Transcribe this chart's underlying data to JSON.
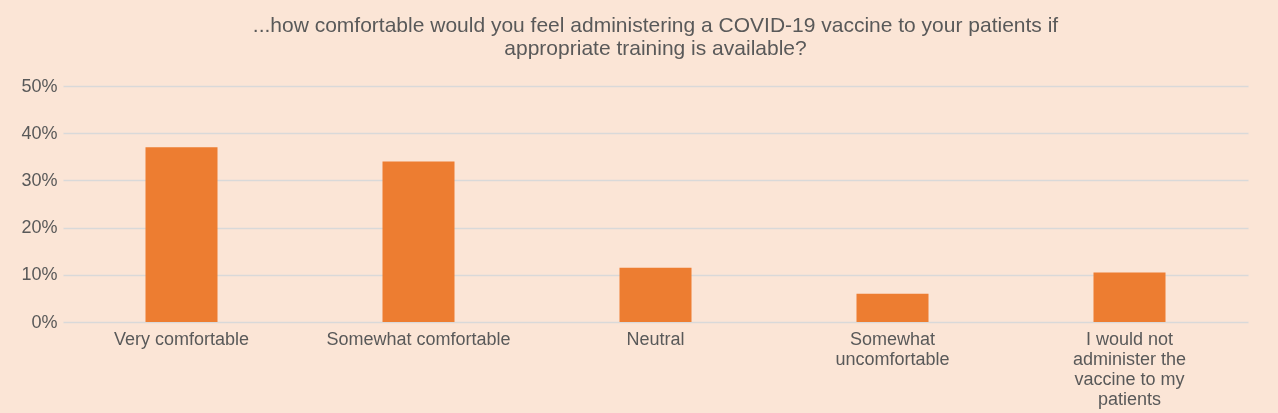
{
  "chart_data": {
    "type": "bar",
    "title": "...how comfortable would you feel administering a COVID-19 vaccine to your patients if appropriate training is available?",
    "categories": [
      "Very comfortable",
      "Somewhat comfortable",
      "Neutral",
      "Somewhat uncomfortable",
      "I would not administer the vaccine to my patients"
    ],
    "values": [
      37,
      34,
      11.5,
      6,
      10.5
    ],
    "color": "#ed7d31",
    "ylim": [
      0,
      50
    ],
    "yticks": [
      {
        "value": 0,
        "label": "0%"
      },
      {
        "value": 10,
        "label": "10%"
      },
      {
        "value": 20,
        "label": "20%"
      },
      {
        "value": 30,
        "label": "30%"
      },
      {
        "value": 40,
        "label": "40%"
      },
      {
        "value": 50,
        "label": "50%"
      }
    ],
    "grid": "y"
  }
}
